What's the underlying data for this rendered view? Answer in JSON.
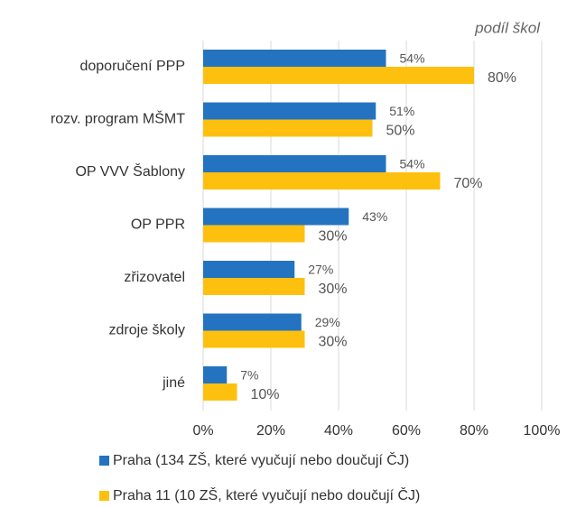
{
  "chart_data": {
    "type": "barh",
    "xlabel": "podíl škol",
    "categories": [
      "doporučení PPP",
      "rozv. program MŠMT",
      "OP VVV Šablony",
      "OP PPR",
      "zřizovatel",
      "zdroje školy",
      "jiné"
    ],
    "series": [
      {
        "name": "Praha (134 ZŠ, které vyučují nebo doučují ČJ)",
        "color": "#2473c0",
        "values": [
          54,
          51,
          54,
          43,
          27,
          29,
          7
        ],
        "value_labels": [
          "54%",
          "51%",
          "54%",
          "43%",
          "27%",
          "29%",
          "7%"
        ]
      },
      {
        "name": "Praha 11 (10 ZŠ, které vyučují nebo doučují ČJ)",
        "color": "#fec00f",
        "values": [
          80,
          50,
          70,
          30,
          30,
          30,
          10
        ],
        "value_labels": [
          "80%",
          "50%",
          "70%",
          "30%",
          "30%",
          "30%",
          "10%"
        ]
      }
    ],
    "xlim": [
      0,
      100
    ],
    "xticks": [
      {
        "value": 0,
        "label": "0%"
      },
      {
        "value": 20,
        "label": "20%"
      },
      {
        "value": 40,
        "label": "40%"
      },
      {
        "value": 60,
        "label": "60%"
      },
      {
        "value": 80,
        "label": "80%"
      },
      {
        "value": 100,
        "label": "100%"
      }
    ],
    "grid": true
  }
}
